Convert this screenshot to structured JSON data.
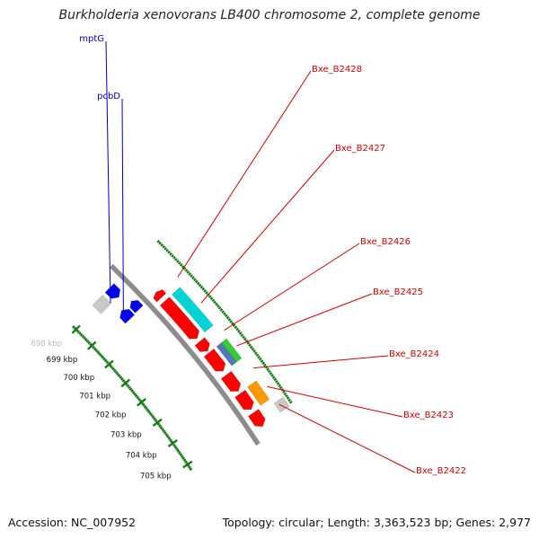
{
  "title": "Burkholderia xenovorans LB400 chromosome 2, complete genome",
  "footer": {
    "accession": "Accession: NC_007952",
    "summary": "Topology: circular; Length: 3,363,523 bp; Genes: 2,977"
  },
  "colors": {
    "backbone": "#8c8c8c",
    "tick": "#1a7a1a",
    "gene_label_red": "#cc0000",
    "gene_label_blue": "#0000bb",
    "feature_red": "#ff0000",
    "feature_blue": "#0000ee",
    "feature_cyan": "#00d4d4",
    "feature_green": "#33cc33",
    "feature_steel": "#5577bb",
    "feature_orange": "#ff9900",
    "feature_grey": "#c8c8c8"
  },
  "scale": {
    "unit": "kbp",
    "ticks": [
      {
        "label": "698 kbp",
        "kbp": 698
      },
      {
        "label": "699 kbp",
        "kbp": 699
      },
      {
        "label": "700 kbp",
        "kbp": 700
      },
      {
        "label": "701 kbp",
        "kbp": 701
      },
      {
        "label": "702 kbp",
        "kbp": 702
      },
      {
        "label": "703 kbp",
        "kbp": 703
      },
      {
        "label": "704 kbp",
        "kbp": 704
      },
      {
        "label": "705 kbp",
        "kbp": 705
      }
    ]
  },
  "genes": [
    {
      "label": "mptG",
      "track": "inner",
      "color": "blue"
    },
    {
      "label": "pcbD",
      "track": "inner",
      "color": "blue"
    },
    {
      "label": "Bxe_B2428",
      "track": "outer",
      "color": "red"
    },
    {
      "label": "Bxe_B2427",
      "track": "outer",
      "color": "red"
    },
    {
      "label": "Bxe_B2426",
      "track": "outer",
      "color": "red"
    },
    {
      "label": "Bxe_B2425",
      "track": "outer",
      "color": "red"
    },
    {
      "label": "Bxe_B2424",
      "track": "outer",
      "color": "red"
    },
    {
      "label": "Bxe_B2423",
      "track": "outer",
      "color": "red"
    },
    {
      "label": "Bxe_B2422",
      "track": "outer",
      "color": "red"
    }
  ]
}
